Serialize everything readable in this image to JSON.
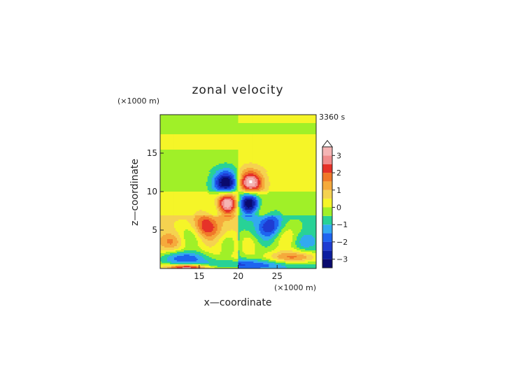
{
  "chart_data": {
    "type": "heatmap",
    "title": "zonal velocity",
    "time_label": "3360 s",
    "xlabel": "x—coordinate",
    "ylabel": "z—coordinate",
    "x_scale_note": "(×1000 m)",
    "y_scale_note": "(×1000 m)",
    "xlim": [
      10,
      30
    ],
    "ylim": [
      0,
      20
    ],
    "x_ticks": [
      {
        "value": 15,
        "label": "15"
      },
      {
        "value": 20,
        "label": "20"
      },
      {
        "value": 25,
        "label": "25"
      }
    ],
    "y_ticks": [
      {
        "value": 5,
        "label": "5"
      },
      {
        "value": 10,
        "label": "10"
      },
      {
        "value": 15,
        "label": "15"
      }
    ],
    "colorbar": {
      "min": -3.5,
      "max": 3.5,
      "extend": "max",
      "tick_values": [
        3,
        2,
        1,
        0,
        -1,
        -2,
        -3
      ],
      "tick_labels": [
        "3",
        "2",
        "1",
        "0",
        "−1",
        "−2",
        "−3"
      ],
      "levels": [
        {
          "from": -3.5,
          "to": -3.0,
          "color": "#0a0a6e"
        },
        {
          "from": -3.0,
          "to": -2.5,
          "color": "#0c1ea0"
        },
        {
          "from": -2.5,
          "to": -2.0,
          "color": "#1e3cd2"
        },
        {
          "from": -2.0,
          "to": -1.5,
          "color": "#1e64f0"
        },
        {
          "from": -1.5,
          "to": -1.0,
          "color": "#32aaf0"
        },
        {
          "from": -1.0,
          "to": -0.5,
          "color": "#28d296"
        },
        {
          "from": -0.5,
          "to": 0.0,
          "color": "#a0f028"
        },
        {
          "from": 0.0,
          "to": 0.5,
          "color": "#f5f528"
        },
        {
          "from": 0.5,
          "to": 1.0,
          "color": "#f5d250"
        },
        {
          "from": 1.0,
          "to": 1.5,
          "color": "#f5aa3c"
        },
        {
          "from": 1.5,
          "to": 2.0,
          "color": "#f07828"
        },
        {
          "from": 2.0,
          "to": 2.5,
          "color": "#e63228"
        },
        {
          "from": 2.5,
          "to": 3.0,
          "color": "#f08c8c"
        },
        {
          "from": 3.0,
          "to": 3.5,
          "color": "#f5b4b4"
        }
      ]
    },
    "field_blobs": [
      {
        "x": 18.5,
        "z": 11.0,
        "rx": 1.6,
        "rz": 1.6,
        "value": -3.8
      },
      {
        "x": 21.5,
        "z": 11.0,
        "rx": 1.6,
        "rz": 1.6,
        "value": 3.8
      },
      {
        "x": 18.6,
        "z": 8.6,
        "rx": 1.4,
        "rz": 1.6,
        "value": 3.8
      },
      {
        "x": 21.4,
        "z": 8.6,
        "rx": 1.4,
        "rz": 1.6,
        "value": -3.8
      },
      {
        "x": 17.0,
        "z": 7.5,
        "rx": 1.3,
        "rz": 1.5,
        "value": -1.0
      },
      {
        "x": 23.0,
        "z": 7.5,
        "rx": 1.3,
        "rz": 1.5,
        "value": 1.0
      },
      {
        "x": 16.0,
        "z": 5.5,
        "rx": 1.6,
        "rz": 1.8,
        "value": 2.2
      },
      {
        "x": 24.0,
        "z": 5.5,
        "rx": 1.6,
        "rz": 1.8,
        "value": -2.2
      },
      {
        "x": 14.0,
        "z": 4.0,
        "rx": 2.0,
        "rz": 1.8,
        "value": -1.2
      },
      {
        "x": 26.0,
        "z": 4.0,
        "rx": 2.0,
        "rz": 1.8,
        "value": 1.2
      },
      {
        "x": 19.0,
        "z": 3.0,
        "rx": 1.5,
        "rz": 1.5,
        "value": -1.2
      },
      {
        "x": 21.0,
        "z": 3.0,
        "rx": 1.5,
        "rz": 1.5,
        "value": 1.2
      },
      {
        "x": 13.0,
        "z": 1.4,
        "rx": 3.5,
        "rz": 0.9,
        "value": -2.2
      },
      {
        "x": 27.0,
        "z": 1.4,
        "rx": 3.5,
        "rz": 0.9,
        "value": 2.2
      },
      {
        "x": 20.0,
        "z": 0.5,
        "rx": 9.0,
        "rz": 0.7,
        "value": -1.5
      },
      {
        "x": 13.5,
        "z": 0.15,
        "rx": 2.5,
        "rz": 0.4,
        "value": 3.0
      },
      {
        "x": 11.5,
        "z": 3.5,
        "rx": 1.5,
        "rz": 1.2,
        "value": 1.2
      },
      {
        "x": 28.5,
        "z": 3.5,
        "rx": 1.5,
        "rz": 1.2,
        "value": -1.0
      }
    ],
    "background_bands": [
      {
        "z_from": 19.0,
        "z_to": 20.0,
        "left": -0.2,
        "right": 0.2
      },
      {
        "z_from": 17.5,
        "z_to": 19.0,
        "left": -0.3,
        "right": -0.3
      },
      {
        "z_from": 15.5,
        "z_to": 17.5,
        "left": 0.2,
        "right": 0.2
      },
      {
        "z_from": 14.0,
        "z_to": 15.5,
        "left": -0.2,
        "right": 0.2
      },
      {
        "z_from": 12.5,
        "z_to": 14.0,
        "left": -0.3,
        "right": 0.3
      },
      {
        "z_from": 10.0,
        "z_to": 12.5,
        "left": -0.2,
        "right": 0.2
      },
      {
        "z_from": 7.0,
        "z_to": 10.0,
        "left": 0.2,
        "right": -0.2
      },
      {
        "z_from": 0.0,
        "z_to": 7.0,
        "left": 0.6,
        "right": -0.6
      }
    ]
  }
}
